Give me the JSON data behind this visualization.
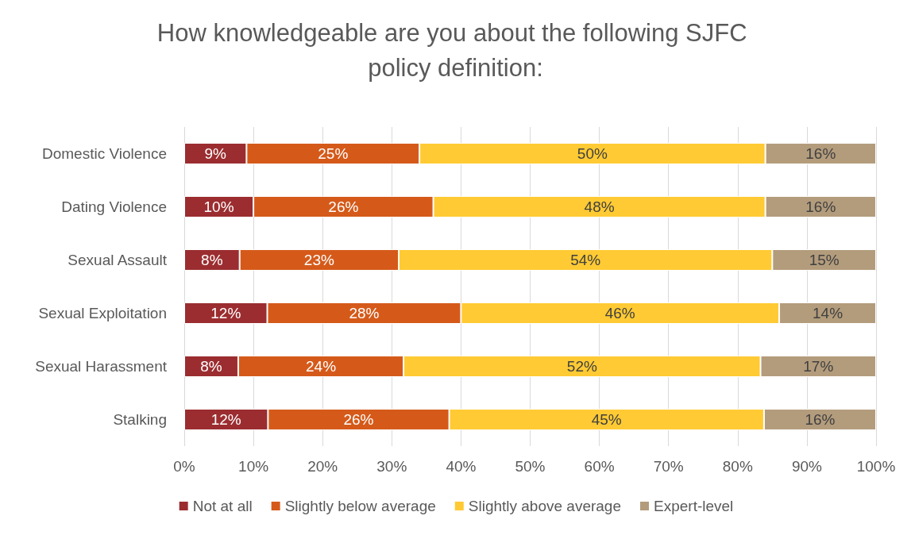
{
  "chart_data": {
    "type": "bar",
    "orientation": "horizontal",
    "stacked": true,
    "title": "How knowledgeable are you about the following SJFC policy definition:",
    "categories": [
      "Domestic Violence",
      "Dating Violence",
      "Sexual Assault",
      "Sexual Exploitation",
      "Sexual Harassment",
      "Stalking"
    ],
    "series": [
      {
        "name": "Not at all",
        "color": "#9b2d30",
        "values": [
          9,
          10,
          8,
          12,
          7.8,
          12.1
        ],
        "value_labels": [
          "9%",
          "10%",
          "8%",
          "12%",
          "8%",
          "12%"
        ]
      },
      {
        "name": "Slightly below average",
        "color": "#d55a1a",
        "values": [
          25,
          26,
          23,
          28,
          23.9,
          26.2
        ],
        "value_labels": [
          "25%",
          "26%",
          "23%",
          "28%",
          "24%",
          "26%"
        ]
      },
      {
        "name": "Slightly above average",
        "color": "#ffca33",
        "values": [
          50,
          48,
          54,
          46,
          51.6,
          45.5
        ],
        "value_labels": [
          "50%",
          "48%",
          "54%",
          "46%",
          "52%",
          "45%"
        ]
      },
      {
        "name": "Expert-level",
        "color": "#b39c7c",
        "values": [
          16,
          16,
          15,
          14,
          16.7,
          16.2
        ],
        "value_labels": [
          "16%",
          "16%",
          "15%",
          "14%",
          "17%",
          "16%"
        ]
      }
    ],
    "xlim": [
      0,
      100
    ],
    "xticks": [
      {
        "value": 0,
        "label": "0%"
      },
      {
        "value": 10,
        "label": "10%"
      },
      {
        "value": 20,
        "label": "20%"
      },
      {
        "value": 30,
        "label": "30%"
      },
      {
        "value": 40,
        "label": "40%"
      },
      {
        "value": 50,
        "label": "50%"
      },
      {
        "value": 60,
        "label": "60%"
      },
      {
        "value": 70,
        "label": "70%"
      },
      {
        "value": 80,
        "label": "80%"
      },
      {
        "value": 90,
        "label": "90%"
      },
      {
        "value": 100,
        "label": "100%"
      }
    ],
    "grid": "x",
    "legend": "bottom"
  }
}
